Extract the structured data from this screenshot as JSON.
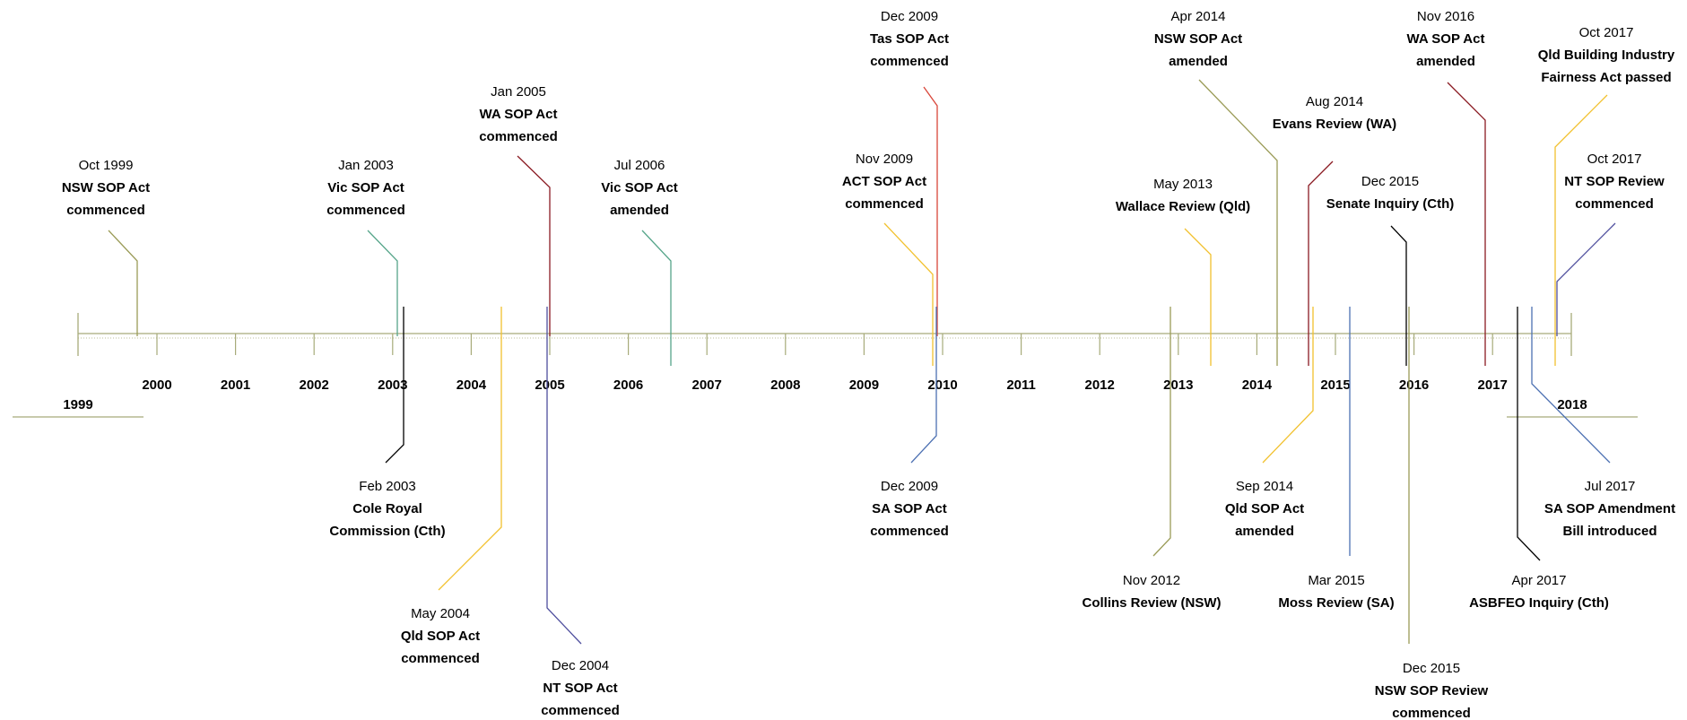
{
  "years": [
    "1999",
    "2000",
    "2001",
    "2002",
    "2003",
    "2004",
    "2005",
    "2006",
    "2007",
    "2008",
    "2009",
    "2010",
    "2011",
    "2012",
    "2013",
    "2014",
    "2015",
    "2016",
    "2017",
    "2018"
  ],
  "colors": {
    "axis": "#a7ab7a",
    "olive": "#9a9b57",
    "teal": "#56a58a",
    "black": "#000000",
    "gold": "#f2c12e",
    "darkred": "#8a1a22",
    "navy": "#4f4f9e",
    "red": "#d9463a",
    "blue": "#4c70b2"
  },
  "events": [
    {
      "date": "Oct 1999",
      "lines": [
        "NSW SOP Act",
        "commenced"
      ],
      "color": "olive"
    },
    {
      "date": "Jan 2003",
      "lines": [
        "Vic SOP Act",
        "commenced"
      ],
      "color": "teal"
    },
    {
      "date": "Feb 2003",
      "lines": [
        "Cole Royal",
        "Commission (Cth)"
      ],
      "color": "black"
    },
    {
      "date": "May 2004",
      "lines": [
        "Qld SOP Act",
        "commenced"
      ],
      "color": "gold"
    },
    {
      "date": "Jan 2005",
      "lines": [
        "WA SOP Act",
        "commenced"
      ],
      "color": "darkred"
    },
    {
      "date": "Dec 2004",
      "lines": [
        "NT SOP Act",
        "commenced"
      ],
      "color": "navy"
    },
    {
      "date": "Jul 2006",
      "lines": [
        "Vic SOP Act",
        "amended"
      ],
      "color": "teal"
    },
    {
      "date": "Nov 2009",
      "lines": [
        "ACT SOP Act",
        "commenced"
      ],
      "color": "gold"
    },
    {
      "date": "Dec 2009",
      "lines": [
        "Tas SOP Act",
        "commenced"
      ],
      "color": "red"
    },
    {
      "date": "Dec 2009",
      "lines": [
        "SA SOP Act",
        "commenced"
      ],
      "color": "blue"
    },
    {
      "date": "Nov 2012",
      "lines": [
        "Collins Review (NSW)"
      ],
      "color": "olive"
    },
    {
      "date": "May 2013",
      "lines": [
        "Wallace Review (Qld)"
      ],
      "color": "gold"
    },
    {
      "date": "Apr 2014",
      "lines": [
        "NSW SOP Act",
        "amended"
      ],
      "color": "olive"
    },
    {
      "date": "Aug 2014",
      "lines": [
        "Evans Review (WA)"
      ],
      "color": "darkred"
    },
    {
      "date": "Sep 2014",
      "lines": [
        "Qld SOP Act",
        "amended"
      ],
      "color": "gold"
    },
    {
      "date": "Mar 2015",
      "lines": [
        "Moss Review (SA)"
      ],
      "color": "blue"
    },
    {
      "date": "Dec 2015",
      "lines": [
        "Senate Inquiry (Cth)"
      ],
      "color": "black"
    },
    {
      "date": "Dec 2015",
      "lines": [
        "NSW SOP Review",
        "commenced"
      ],
      "color": "olive"
    },
    {
      "date": "Nov 2016",
      "lines": [
        "WA SOP Act",
        "amended"
      ],
      "color": "darkred"
    },
    {
      "date": "Apr 2017",
      "lines": [
        "ASBFEO Inquiry (Cth)"
      ],
      "color": "black"
    },
    {
      "date": "Jul 2017",
      "lines": [
        "SA SOP Amendment",
        "Bill introduced"
      ],
      "color": "blue"
    },
    {
      "date": "Oct 2017",
      "lines": [
        "Qld Building Industry",
        "Fairness Act passed"
      ],
      "color": "gold"
    },
    {
      "date": "Oct 2017",
      "lines": [
        "NT SOP Review",
        "commenced"
      ],
      "color": "navy"
    }
  ]
}
